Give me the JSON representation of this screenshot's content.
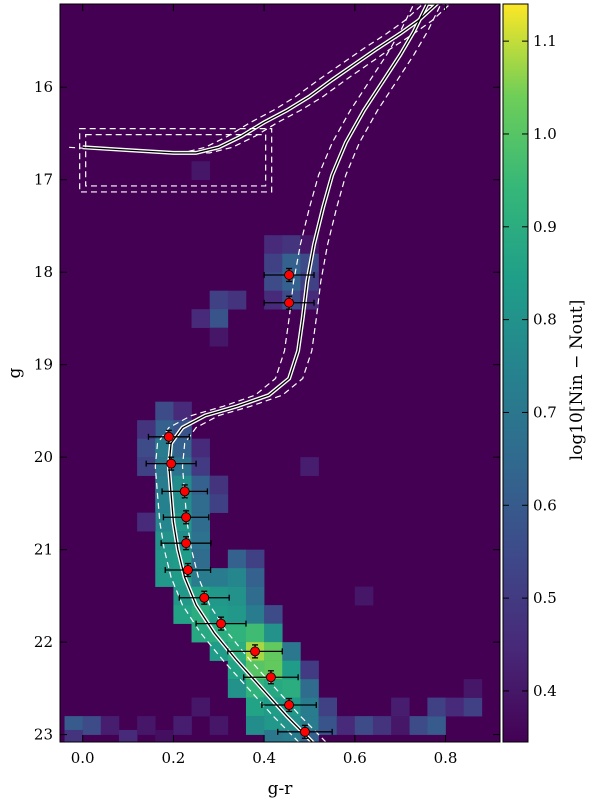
{
  "chart_data": {
    "type": "heatmap",
    "title": "",
    "xlabel": "g-r",
    "ylabel": "g",
    "xlim": [
      -0.05,
      0.92
    ],
    "ylim": [
      23.08,
      15.1
    ],
    "y_inverted": true,
    "grid": false,
    "x_ticks": [
      0.0,
      0.2,
      0.4,
      0.6,
      0.8
    ],
    "x_tick_labels": [
      "0.0",
      "0.2",
      "0.4",
      "0.6",
      "0.8"
    ],
    "y_ticks": [
      16,
      17,
      18,
      19,
      20,
      21,
      22,
      23
    ],
    "y_tick_labels": [
      "16",
      "17",
      "18",
      "19",
      "20",
      "21",
      "22",
      "23"
    ],
    "colorbar": {
      "label_text": "log10[Nin − Nout]",
      "min": 0.345,
      "max": 1.14,
      "ticks": [
        0.4,
        0.5,
        0.6,
        0.7,
        0.8,
        0.9,
        1.0,
        1.1
      ],
      "tick_labels": [
        "0.4",
        "0.5",
        "0.6",
        "0.7",
        "0.8",
        "0.9",
        "1.0",
        "1.1"
      ],
      "colormap": "viridis"
    },
    "background_color": "#440154",
    "bin_size": {
      "dx": 0.04,
      "dy": 0.2
    },
    "heatmap_cells": [
      [
        0.18,
        19.5,
        0.55
      ],
      [
        0.22,
        19.5,
        0.45
      ],
      [
        0.18,
        19.7,
        0.62
      ],
      [
        0.22,
        19.7,
        0.58
      ],
      [
        0.14,
        19.7,
        0.48
      ],
      [
        0.14,
        19.9,
        0.55
      ],
      [
        0.18,
        19.9,
        0.72
      ],
      [
        0.22,
        19.9,
        0.62
      ],
      [
        0.26,
        19.9,
        0.45
      ],
      [
        0.14,
        20.1,
        0.52
      ],
      [
        0.18,
        20.1,
        0.7
      ],
      [
        0.22,
        20.1,
        0.68
      ],
      [
        0.26,
        20.1,
        0.5
      ],
      [
        0.18,
        20.3,
        0.72
      ],
      [
        0.22,
        20.3,
        0.78
      ],
      [
        0.26,
        20.3,
        0.62
      ],
      [
        0.3,
        20.3,
        0.48
      ],
      [
        0.18,
        20.5,
        0.74
      ],
      [
        0.22,
        20.5,
        0.78
      ],
      [
        0.26,
        20.5,
        0.66
      ],
      [
        0.3,
        20.5,
        0.52
      ],
      [
        0.18,
        20.7,
        0.76
      ],
      [
        0.22,
        20.7,
        0.82
      ],
      [
        0.26,
        20.7,
        0.66
      ],
      [
        0.14,
        20.7,
        0.45
      ],
      [
        0.18,
        20.9,
        0.8
      ],
      [
        0.22,
        20.9,
        0.78
      ],
      [
        0.26,
        20.9,
        0.68
      ],
      [
        0.18,
        21.1,
        0.82
      ],
      [
        0.22,
        21.1,
        0.84
      ],
      [
        0.26,
        21.1,
        0.66
      ],
      [
        0.34,
        21.1,
        0.62
      ],
      [
        0.38,
        21.1,
        0.52
      ],
      [
        0.18,
        21.3,
        0.82
      ],
      [
        0.22,
        21.3,
        0.84
      ],
      [
        0.26,
        21.3,
        0.72
      ],
      [
        0.3,
        21.3,
        0.72
      ],
      [
        0.34,
        21.3,
        0.76
      ],
      [
        0.38,
        21.3,
        0.62
      ],
      [
        0.22,
        21.5,
        0.82
      ],
      [
        0.26,
        21.5,
        0.86
      ],
      [
        0.3,
        21.5,
        0.82
      ],
      [
        0.34,
        21.5,
        0.8
      ],
      [
        0.38,
        21.5,
        0.66
      ],
      [
        0.22,
        21.7,
        0.86
      ],
      [
        0.26,
        21.7,
        0.9
      ],
      [
        0.3,
        21.7,
        0.84
      ],
      [
        0.34,
        21.7,
        0.82
      ],
      [
        0.38,
        21.7,
        0.72
      ],
      [
        0.42,
        21.7,
        0.55
      ],
      [
        0.26,
        21.9,
        0.88
      ],
      [
        0.3,
        21.9,
        0.9
      ],
      [
        0.34,
        21.9,
        0.92
      ],
      [
        0.38,
        21.9,
        0.96
      ],
      [
        0.42,
        21.9,
        0.8
      ],
      [
        0.3,
        22.1,
        0.84
      ],
      [
        0.34,
        22.1,
        0.9
      ],
      [
        0.38,
        22.1,
        1.08
      ],
      [
        0.42,
        22.1,
        1.02
      ],
      [
        0.46,
        22.1,
        0.7
      ],
      [
        0.34,
        22.3,
        0.86
      ],
      [
        0.38,
        22.3,
        1.0
      ],
      [
        0.42,
        22.3,
        1.02
      ],
      [
        0.46,
        22.3,
        0.84
      ],
      [
        0.5,
        22.3,
        0.5
      ],
      [
        0.34,
        22.5,
        0.8
      ],
      [
        0.38,
        22.5,
        0.92
      ],
      [
        0.42,
        22.5,
        0.88
      ],
      [
        0.46,
        22.5,
        0.9
      ],
      [
        0.5,
        22.5,
        0.66
      ],
      [
        0.38,
        22.7,
        0.86
      ],
      [
        0.42,
        22.7,
        0.84
      ],
      [
        0.46,
        22.7,
        0.82
      ],
      [
        0.5,
        22.7,
        0.72
      ],
      [
        0.54,
        22.7,
        0.52
      ],
      [
        0.38,
        22.9,
        0.78
      ],
      [
        0.42,
        22.9,
        0.82
      ],
      [
        0.46,
        22.9,
        0.8
      ],
      [
        0.5,
        22.9,
        0.72
      ],
      [
        0.54,
        22.9,
        0.58
      ],
      [
        0.58,
        22.9,
        0.45
      ],
      [
        0.42,
        23.05,
        0.7
      ],
      [
        0.46,
        23.05,
        0.72
      ],
      [
        0.5,
        23.05,
        0.62
      ],
      [
        -0.02,
        22.9,
        0.6
      ],
      [
        0.02,
        22.9,
        0.55
      ],
      [
        0.06,
        22.9,
        0.42
      ],
      [
        -0.02,
        23.05,
        0.48
      ],
      [
        0.1,
        23.05,
        0.45
      ],
      [
        0.14,
        22.9,
        0.4
      ],
      [
        0.22,
        22.9,
        0.42
      ],
      [
        0.18,
        23.05,
        0.38
      ],
      [
        0.26,
        22.7,
        0.4
      ],
      [
        0.3,
        22.9,
        0.4
      ],
      [
        0.62,
        22.9,
        0.55
      ],
      [
        0.66,
        22.9,
        0.48
      ],
      [
        0.7,
        22.7,
        0.42
      ],
      [
        0.74,
        22.9,
        0.55
      ],
      [
        0.78,
        22.9,
        0.6
      ],
      [
        0.78,
        22.7,
        0.52
      ],
      [
        0.82,
        22.7,
        0.45
      ],
      [
        0.86,
        22.7,
        0.52
      ],
      [
        0.86,
        22.5,
        0.4
      ],
      [
        0.7,
        22.9,
        0.4
      ],
      [
        0.62,
        21.5,
        0.4
      ],
      [
        0.42,
        17.7,
        0.45
      ],
      [
        0.46,
        17.7,
        0.48
      ],
      [
        0.5,
        17.7,
        0.4
      ],
      [
        0.42,
        17.9,
        0.52
      ],
      [
        0.46,
        17.9,
        0.62
      ],
      [
        0.5,
        17.9,
        0.55
      ],
      [
        0.42,
        18.1,
        0.55
      ],
      [
        0.46,
        18.1,
        0.62
      ],
      [
        0.5,
        18.1,
        0.52
      ],
      [
        0.42,
        18.3,
        0.45
      ],
      [
        0.46,
        18.3,
        0.55
      ],
      [
        0.5,
        18.3,
        0.45
      ],
      [
        0.3,
        18.3,
        0.52
      ],
      [
        0.34,
        18.3,
        0.48
      ],
      [
        0.3,
        18.5,
        0.58
      ],
      [
        0.26,
        18.5,
        0.45
      ],
      [
        0.3,
        18.7,
        0.4
      ],
      [
        0.5,
        20.1,
        0.42
      ],
      [
        0.26,
        16.9,
        0.4
      ]
    ],
    "points": [
      {
        "x": 0.19,
        "y": 19.78,
        "xerr": 0.045,
        "yerr": 0.07
      },
      {
        "x": 0.195,
        "y": 20.07,
        "xerr": 0.055,
        "yerr": 0.07
      },
      {
        "x": 0.225,
        "y": 20.37,
        "xerr": 0.05,
        "yerr": 0.07
      },
      {
        "x": 0.228,
        "y": 20.65,
        "xerr": 0.05,
        "yerr": 0.07
      },
      {
        "x": 0.228,
        "y": 20.93,
        "xerr": 0.055,
        "yerr": 0.07
      },
      {
        "x": 0.232,
        "y": 21.22,
        "xerr": 0.05,
        "yerr": 0.07
      },
      {
        "x": 0.268,
        "y": 21.52,
        "xerr": 0.055,
        "yerr": 0.07
      },
      {
        "x": 0.305,
        "y": 21.8,
        "xerr": 0.055,
        "yerr": 0.07
      },
      {
        "x": 0.38,
        "y": 22.1,
        "xerr": 0.06,
        "yerr": 0.07
      },
      {
        "x": 0.415,
        "y": 22.38,
        "xerr": 0.06,
        "yerr": 0.07
      },
      {
        "x": 0.455,
        "y": 22.68,
        "xerr": 0.06,
        "yerr": 0.07
      },
      {
        "x": 0.49,
        "y": 22.97,
        "xerr": 0.06,
        "yerr": 0.07
      },
      {
        "x": 0.455,
        "y": 18.03,
        "xerr": 0.055,
        "yerr": 0.07
      },
      {
        "x": 0.455,
        "y": 18.33,
        "xerr": 0.055,
        "yerr": 0.07
      }
    ],
    "isochrone": [
      [
        0.0,
        16.65
      ],
      [
        0.1,
        16.68
      ],
      [
        0.2,
        16.71
      ],
      [
        0.25,
        16.71
      ],
      [
        0.3,
        16.65
      ],
      [
        0.35,
        16.53
      ],
      [
        0.4,
        16.38
      ],
      [
        0.45,
        16.25
      ],
      [
        0.5,
        16.1
      ],
      [
        0.55,
        15.92
      ],
      [
        0.6,
        15.75
      ],
      [
        0.65,
        15.58
      ],
      [
        0.7,
        15.42
      ],
      [
        0.74,
        15.28
      ],
      [
        0.78,
        15.1
      ],
      [
        0.76,
        15.1
      ],
      [
        0.73,
        15.4
      ],
      [
        0.7,
        15.65
      ],
      [
        0.66,
        15.95
      ],
      [
        0.62,
        16.25
      ],
      [
        0.58,
        16.6
      ],
      [
        0.55,
        16.95
      ],
      [
        0.53,
        17.3
      ],
      [
        0.51,
        17.7
      ],
      [
        0.495,
        18.1
      ],
      [
        0.485,
        18.5
      ],
      [
        0.475,
        18.85
      ],
      [
        0.455,
        19.15
      ],
      [
        0.41,
        19.33
      ],
      [
        0.34,
        19.45
      ],
      [
        0.27,
        19.55
      ],
      [
        0.22,
        19.68
      ],
      [
        0.195,
        19.85
      ],
      [
        0.19,
        20.1
      ],
      [
        0.195,
        20.4
      ],
      [
        0.2,
        20.7
      ],
      [
        0.21,
        21.0
      ],
      [
        0.225,
        21.3
      ],
      [
        0.25,
        21.6
      ],
      [
        0.29,
        21.9
      ],
      [
        0.34,
        22.2
      ],
      [
        0.395,
        22.5
      ],
      [
        0.45,
        22.8
      ],
      [
        0.51,
        23.1
      ]
    ],
    "isochrone_offset": 0.03,
    "selection_box": {
      "x": [
        0.0,
        0.41
      ],
      "y": [
        16.48,
        17.1
      ]
    }
  }
}
